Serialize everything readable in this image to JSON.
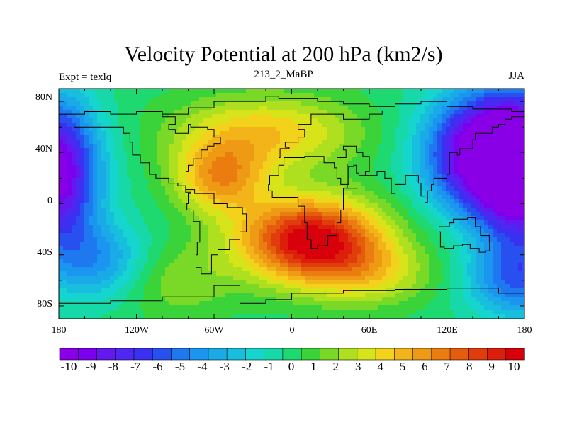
{
  "title": "Velocity Potential at 200 hPa (km2/s)",
  "subtitle_left": "Expt = texlq",
  "subtitle_center": "213_2_MaBP",
  "subtitle_right": "JJA",
  "y_ticks": [
    "80N",
    "40N",
    "0",
    "40S",
    "80S"
  ],
  "x_ticks": [
    "180",
    "120W",
    "60W",
    "0",
    "60E",
    "120E",
    "180"
  ],
  "colorbar_labels": [
    "-10",
    "-9",
    "-8",
    "-7",
    "-6",
    "-5",
    "-4",
    "-3",
    "-2",
    "-1",
    "0",
    "1",
    "2",
    "3",
    "4",
    "5",
    "6",
    "7",
    "8",
    "9",
    "10"
  ],
  "field": {
    "units": "km2/s",
    "centers": [
      {
        "label": "max",
        "lon": 10,
        "lat": -25,
        "value": 10
      },
      {
        "label": "min",
        "lon": -175,
        "lat": 25,
        "value": -10
      },
      {
        "label": "min",
        "lon": 145,
        "lat": 45,
        "value": -10
      }
    ]
  },
  "colors": [
    "#8a00e6",
    "#7a00ee",
    "#6418f0",
    "#4e28f2",
    "#3a30f2",
    "#2850f0",
    "#1e78f0",
    "#1a96f0",
    "#1aaae8",
    "#18bede",
    "#16d4ce",
    "#16d8a8",
    "#1ed870",
    "#3ad43a",
    "#7ad826",
    "#aee020",
    "#d8e41a",
    "#f2d21a",
    "#f2b418",
    "#ee9a14",
    "#ea7c10",
    "#e45c0c",
    "#e03c0c",
    "#dc1e0a",
    "#d8000a"
  ]
}
